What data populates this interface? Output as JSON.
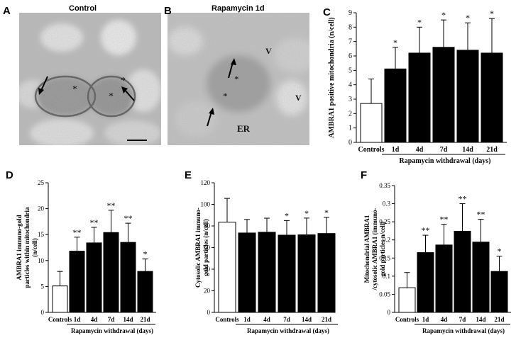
{
  "micrographs": [
    {
      "letter": "A",
      "title": "Control",
      "marks": [
        "*",
        "*",
        "*"
      ]
    },
    {
      "letter": "B",
      "title": "Rapamycin 1d",
      "marks": [
        "*",
        "*",
        "V",
        "V",
        "ER"
      ]
    }
  ],
  "chart_data": [
    {
      "type": "bar",
      "letter": "C",
      "categories": [
        "Controls",
        "1d",
        "4d",
        "7d",
        "14d",
        "21d"
      ],
      "values": [
        2.7,
        5.1,
        6.2,
        6.6,
        6.4,
        6.2
      ],
      "errors": [
        1.7,
        1.5,
        1.8,
        1.9,
        1.9,
        2.4
      ],
      "significance": [
        "",
        "*",
        "*",
        "*",
        "*",
        "*"
      ],
      "ylabel": "AMBRA1 positive mitochondria (n/cell)",
      "xlabel": "Rapamycin withdrawal (days)",
      "ylim": [
        0,
        9
      ],
      "ticks": [
        0,
        1,
        2,
        3,
        4,
        5,
        6,
        7,
        8,
        9
      ]
    },
    {
      "type": "bar",
      "letter": "D",
      "categories": [
        "Controls",
        "1d",
        "4d",
        "7d",
        "14d",
        "21d"
      ],
      "values": [
        5.1,
        11.8,
        13.4,
        15.4,
        13.5,
        7.9
      ],
      "errors": [
        2.8,
        2.7,
        3.0,
        4.3,
        3.7,
        2.4
      ],
      "significance": [
        "",
        "**",
        "**",
        "**",
        "**",
        "*"
      ],
      "ylabel": "AMBRA1 immuno-gold particles within mitochondria (n/cell)",
      "xlabel": "Rapamycin withdrawal (days)",
      "ylim": [
        0,
        25
      ],
      "ticks": [
        0,
        5,
        10,
        15,
        20,
        25
      ]
    },
    {
      "type": "bar",
      "letter": "E",
      "categories": [
        "Controls",
        "1d",
        "4d",
        "7d",
        "14d",
        "21d"
      ],
      "values": [
        83.5,
        73.5,
        74.2,
        71.5,
        71.8,
        73.0
      ],
      "errors": [
        22,
        12.5,
        13,
        13.5,
        15.5,
        15
      ],
      "significance": [
        "",
        "",
        "",
        "*",
        "*",
        "*"
      ],
      "ylabel": "Cytosolic AMBRA1 immuno-gold particles (n/cell)",
      "xlabel": "Rapamycin withdrawal (days)",
      "ylim": [
        0,
        120
      ],
      "ticks": [
        0,
        20,
        40,
        60,
        80,
        100,
        120
      ]
    },
    {
      "type": "bar",
      "letter": "F",
      "categories": [
        "Controls",
        "1d",
        "4d",
        "7d",
        "14d",
        "21d"
      ],
      "values": [
        0.068,
        0.165,
        0.186,
        0.224,
        0.194,
        0.113
      ],
      "errors": [
        0.042,
        0.048,
        0.057,
        0.076,
        0.063,
        0.042
      ],
      "significance": [
        "",
        "**",
        "**",
        "**",
        "**",
        "*"
      ],
      "ylabel": "Mitochondrial AMBRA1 /cytosolic AMBRA1 (immuno-gold particles n/cell)",
      "xlabel": "Rapamycin withdrawal (days)",
      "ylim": [
        0,
        0.35
      ],
      "ticks": [
        0,
        0.05,
        0.1,
        0.15,
        0.2,
        0.25,
        0.3,
        0.35
      ]
    }
  ]
}
